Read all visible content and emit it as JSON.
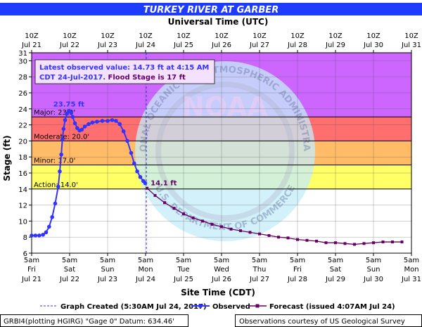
{
  "chart_data": {
    "type": "line",
    "title": "TURKEY RIVER AT GARBER",
    "top_axis_title": "Universal Time (UTC)",
    "xlabel": "Site Time (CDT)",
    "ylabel": "Stage (ft)",
    "ylim": [
      6,
      31
    ],
    "yticks": [
      6,
      8,
      10,
      12,
      14,
      16,
      18,
      20,
      22,
      24,
      26,
      28,
      30,
      31
    ],
    "xlim_days": [
      "Jul 21 5am",
      "Jul 31 5am"
    ],
    "grid": true,
    "top_ticks": [
      {
        "time": "10Z",
        "date": "Jul 21"
      },
      {
        "time": "10Z",
        "date": "Jul 22"
      },
      {
        "time": "10Z",
        "date": "Jul 23"
      },
      {
        "time": "10Z",
        "date": "Jul 24"
      },
      {
        "time": "10Z",
        "date": "Jul 25"
      },
      {
        "time": "10Z",
        "date": "Jul 26"
      },
      {
        "time": "10Z",
        "date": "Jul 27"
      },
      {
        "time": "10Z",
        "date": "Jul 28"
      },
      {
        "time": "10Z",
        "date": "Jul 29"
      },
      {
        "time": "10Z",
        "date": "Jul 30"
      },
      {
        "time": "10Z",
        "date": "Jul 31"
      }
    ],
    "bottom_ticks": [
      {
        "time": "5am",
        "day": "Fri",
        "date": "Jul 21"
      },
      {
        "time": "5am",
        "day": "Sat",
        "date": "Jul 22"
      },
      {
        "time": "5am",
        "day": "Sun",
        "date": "Jul 23"
      },
      {
        "time": "5am",
        "day": "Mon",
        "date": "Jul 24"
      },
      {
        "time": "5am",
        "day": "Tue",
        "date": "Jul 25"
      },
      {
        "time": "5am",
        "day": "Wed",
        "date": "Jul 26"
      },
      {
        "time": "5am",
        "day": "Thu",
        "date": "Jul 27"
      },
      {
        "time": "5am",
        "day": "Fri",
        "date": "Jul 28"
      },
      {
        "time": "5am",
        "day": "Sat",
        "date": "Jul 29"
      },
      {
        "time": "5am",
        "day": "Sun",
        "date": "Jul 30"
      },
      {
        "time": "5am",
        "day": "Mon",
        "date": "Jul 31"
      }
    ],
    "flood_categories": [
      {
        "label": "Major: 23.0'",
        "value": 23.0,
        "color": "#cc66ff"
      },
      {
        "label": "Moderate: 20.0'",
        "value": 20.0,
        "color": "#ff6f6f"
      },
      {
        "label": "Minor: 17.0'",
        "value": 17.0,
        "color": "#ffbb66"
      },
      {
        "label": "Action: 14.0'",
        "value": 14.0,
        "color": "#ffff66"
      }
    ],
    "info_box": {
      "line1": "Latest observed value: 14.73 ft at 4:15 AM",
      "line2_blue": "CDT 24-Jul-2017.",
      "line2_dark": " Flood Stage is 17 ft"
    },
    "peak_label": "23.75 ft",
    "forecast_start_label": "14.1 ft",
    "graph_created_day": 3.02,
    "series": [
      {
        "name": "Observed",
        "color": "#3333ff",
        "points": [
          [
            0.0,
            8.2
          ],
          [
            0.1,
            8.2
          ],
          [
            0.2,
            8.2
          ],
          [
            0.3,
            8.3
          ],
          [
            0.38,
            8.6
          ],
          [
            0.46,
            9.3
          ],
          [
            0.54,
            10.5
          ],
          [
            0.62,
            12.2
          ],
          [
            0.7,
            14.3
          ],
          [
            0.74,
            16.2
          ],
          [
            0.78,
            18.3
          ],
          [
            0.81,
            20.2
          ],
          [
            0.84,
            21.5
          ],
          [
            0.88,
            22.6
          ],
          [
            0.93,
            23.4
          ],
          [
            0.98,
            23.75
          ],
          [
            1.03,
            23.6
          ],
          [
            1.08,
            23.0
          ],
          [
            1.14,
            22.2
          ],
          [
            1.2,
            21.6
          ],
          [
            1.26,
            21.3
          ],
          [
            1.32,
            21.4
          ],
          [
            1.4,
            21.8
          ],
          [
            1.5,
            22.1
          ],
          [
            1.6,
            22.3
          ],
          [
            1.72,
            22.4
          ],
          [
            1.86,
            22.5
          ],
          [
            2.0,
            22.5
          ],
          [
            2.12,
            22.6
          ],
          [
            2.22,
            22.5
          ],
          [
            2.32,
            22.1
          ],
          [
            2.42,
            21.2
          ],
          [
            2.52,
            20.0
          ],
          [
            2.62,
            18.5
          ],
          [
            2.7,
            17.2
          ],
          [
            2.78,
            16.2
          ],
          [
            2.86,
            15.5
          ],
          [
            2.94,
            15.0
          ],
          [
            2.99,
            14.73
          ]
        ]
      },
      {
        "name": "Forecast (issued 4:07AM Jul 24)",
        "color": "#660066",
        "points": [
          [
            3.04,
            14.1
          ],
          [
            3.25,
            13.2
          ],
          [
            3.5,
            12.3
          ],
          [
            3.75,
            11.6
          ],
          [
            4.0,
            10.9
          ],
          [
            4.25,
            10.4
          ],
          [
            4.5,
            10.0
          ],
          [
            4.75,
            9.6
          ],
          [
            5.0,
            9.3
          ],
          [
            5.25,
            9.0
          ],
          [
            5.5,
            8.8
          ],
          [
            5.75,
            8.6
          ],
          [
            6.0,
            8.4
          ],
          [
            6.25,
            8.2
          ],
          [
            6.5,
            8.0
          ],
          [
            6.75,
            7.9
          ],
          [
            7.0,
            7.7
          ],
          [
            7.25,
            7.6
          ],
          [
            7.5,
            7.5
          ],
          [
            7.75,
            7.3
          ],
          [
            8.0,
            7.3
          ],
          [
            8.25,
            7.2
          ],
          [
            8.5,
            7.1
          ],
          [
            8.75,
            7.2
          ],
          [
            9.0,
            7.3
          ],
          [
            9.25,
            7.4
          ],
          [
            9.5,
            7.4
          ],
          [
            9.75,
            7.4
          ]
        ]
      }
    ],
    "legend": {
      "graph_created": "Graph Created (5:30AM Jul 24, 2017)",
      "observed": "Observed",
      "forecast": "Forecast (issued 4:07AM Jul 24)"
    },
    "footer_left": "GRBI4(plotting HGIRG) \"Gage 0\" Datum: 634.46'",
    "footer_right": "Observations courtesy of US Geological Survey",
    "watermark_noaa": "NOAA",
    "watermark_doc": "U.S. DEPARTMENT OF COMMERCE",
    "watermark_arc": "NATIONAL OCEANIC AND ATMOSPHERIC ADMINISTRATION"
  }
}
